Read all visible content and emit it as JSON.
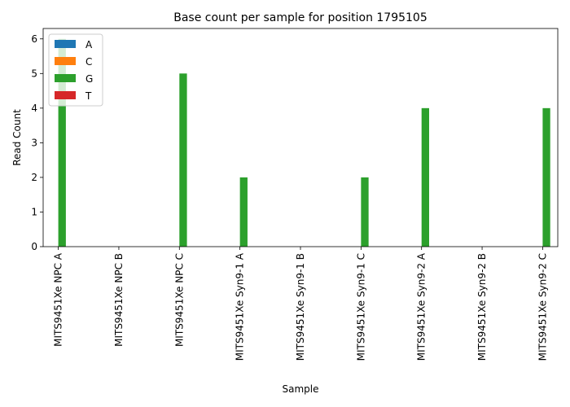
{
  "chart_data": {
    "type": "bar",
    "title": "Base count per sample for position 1795105",
    "xlabel": "Sample",
    "ylabel": "Read Count",
    "ylim": [
      0,
      6.3
    ],
    "yticks": [
      0,
      1,
      2,
      3,
      4,
      5,
      6
    ],
    "legend_position": "top-left",
    "categories": [
      "MITS9451Xe NPC A",
      "MITS9451Xe NPC B",
      "MITS9451Xe NPC C",
      "MITS9451Xe Syn9-1 A",
      "MITS9451Xe Syn9-1 B",
      "MITS9451Xe Syn9-1 C",
      "MITS9451Xe Syn9-2 A",
      "MITS9451Xe Syn9-2 B",
      "MITS9451Xe Syn9-2 C"
    ],
    "series": [
      {
        "name": "A",
        "color": "#1f77b4",
        "values": [
          0,
          0,
          0,
          0,
          0,
          0,
          0,
          0,
          0
        ]
      },
      {
        "name": "C",
        "color": "#ff7f0e",
        "values": [
          0,
          0,
          0,
          0,
          0,
          0,
          0,
          0,
          0
        ]
      },
      {
        "name": "G",
        "color": "#2ca02c",
        "values": [
          6,
          0,
          5,
          2,
          0,
          2,
          4,
          0,
          4
        ]
      },
      {
        "name": "T",
        "color": "#d62728",
        "values": [
          0,
          0,
          0,
          0,
          0,
          0,
          0,
          0,
          0
        ]
      }
    ]
  }
}
